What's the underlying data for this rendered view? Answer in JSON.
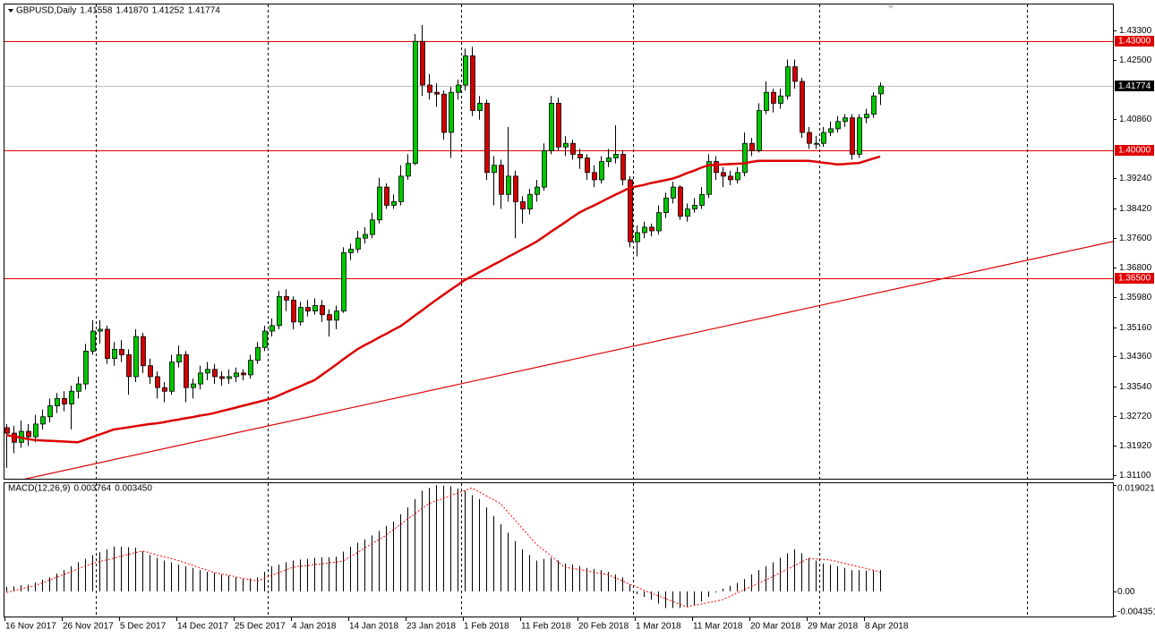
{
  "chart_data": {
    "type": "candlestick",
    "symbol": "GBPUSD,Daily",
    "last_bar_labels": {
      "open": "1.41558",
      "high": "1.41870",
      "low": "1.41252",
      "close": "1.41774"
    },
    "categories": [
      "16 Nov 2017",
      null,
      null,
      null,
      null,
      null,
      null,
      null,
      "26 Nov 2017",
      null,
      null,
      null,
      null,
      null,
      null,
      null,
      "5 Dec 2017",
      null,
      null,
      null,
      null,
      null,
      null,
      null,
      "14 Dec 2017",
      null,
      null,
      null,
      null,
      null,
      null,
      null,
      "25 Dec 2017",
      null,
      null,
      null,
      null,
      null,
      null,
      null,
      "4 Jan 2018",
      null,
      null,
      null,
      null,
      null,
      null,
      null,
      "14 Jan 2018",
      null,
      null,
      null,
      null,
      null,
      null,
      null,
      "23 Jan 2018",
      null,
      null,
      null,
      null,
      null,
      null,
      null,
      "1 Feb 2018",
      null,
      null,
      null,
      null,
      null,
      null,
      null,
      "11 Feb 2018",
      null,
      null,
      null,
      null,
      null,
      null,
      null,
      "20 Feb 2018",
      null,
      null,
      null,
      null,
      null,
      null,
      null,
      "1 Mar 2018",
      null,
      null,
      null,
      null,
      null,
      null,
      null,
      "11 Mar 2018",
      null,
      null,
      null,
      null,
      null,
      null,
      null,
      "20 Mar 2018",
      null,
      null,
      null,
      null,
      null,
      null,
      null,
      "29 Mar 2018",
      null,
      null,
      null,
      null,
      null,
      null,
      null,
      "8 Apr 2018",
      null,
      null
    ],
    "open": [
      1.324,
      1.3225,
      1.32,
      1.323,
      1.3215,
      1.325,
      1.327,
      1.33,
      1.332,
      1.3305,
      1.334,
      1.336,
      1.345,
      1.3505,
      1.351,
      1.343,
      1.3455,
      1.344,
      1.338,
      1.349,
      1.341,
      1.338,
      1.335,
      1.334,
      1.342,
      1.344,
      1.335,
      1.336,
      1.339,
      1.34,
      1.338,
      1.3375,
      1.338,
      1.339,
      1.3385,
      1.3425,
      1.346,
      1.3505,
      1.352,
      1.36,
      1.359,
      1.353,
      1.357,
      1.356,
      1.3575,
      1.355,
      1.3535,
      1.356,
      1.372,
      1.373,
      1.376,
      1.377,
      1.381,
      1.39,
      1.385,
      1.386,
      1.393,
      1.3965,
      1.43,
      1.418,
      1.416,
      1.4155,
      1.405,
      1.416,
      1.418,
      1.426,
      1.411,
      1.413,
      1.394,
      1.396,
      1.388,
      1.393,
      1.386,
      1.384,
      1.388,
      1.39,
      1.4,
      1.413,
      1.401,
      1.402,
      1.399,
      1.398,
      1.394,
      1.392,
      1.397,
      1.398,
      1.399,
      1.392,
      1.375,
      1.3775,
      1.379,
      1.378,
      1.383,
      1.387,
      1.39,
      1.382,
      1.384,
      1.385,
      1.388,
      1.397,
      1.394,
      1.393,
      1.392,
      1.394,
      1.402,
      1.4,
      1.411,
      1.416,
      1.413,
      1.415,
      1.423,
      1.419,
      1.405,
      1.402,
      1.402,
      1.405,
      1.406,
      1.408,
      1.409,
      1.399,
      1.409,
      1.41,
      1.41558
    ],
    "high": [
      1.325,
      1.3245,
      1.326,
      1.325,
      1.3275,
      1.329,
      1.332,
      1.3335,
      1.334,
      1.3355,
      1.338,
      1.347,
      1.3535,
      1.3535,
      1.352,
      1.3475,
      1.348,
      1.3455,
      1.351,
      1.35,
      1.343,
      1.3395,
      1.3365,
      1.344,
      1.3465,
      1.345,
      1.3375,
      1.341,
      1.342,
      1.3415,
      1.3395,
      1.34,
      1.3405,
      1.34,
      1.344,
      1.3475,
      1.352,
      1.354,
      1.3615,
      1.362,
      1.36,
      1.3585,
      1.359,
      1.3595,
      1.359,
      1.3565,
      1.3575,
      1.3735,
      1.3745,
      1.378,
      1.379,
      1.383,
      1.3925,
      1.391,
      1.388,
      1.396,
      1.399,
      1.432,
      1.4345,
      1.421,
      1.4185,
      1.4165,
      1.4175,
      1.4195,
      1.428,
      1.4285,
      1.415,
      1.414,
      1.3985,
      1.3975,
      1.4065,
      1.3945,
      1.3875,
      1.3895,
      1.392,
      1.402,
      1.415,
      1.4145,
      1.404,
      1.403,
      1.4005,
      1.399,
      1.396,
      1.3985,
      1.4005,
      1.407,
      1.4,
      1.393,
      1.3795,
      1.3805,
      1.38,
      1.385,
      1.3885,
      1.3915,
      1.3905,
      1.3855,
      1.387,
      1.39,
      1.399,
      1.3985,
      1.3955,
      1.3945,
      1.3955,
      1.405,
      1.4035,
      1.413,
      1.419,
      1.417,
      1.417,
      1.425,
      1.425,
      1.42,
      1.4065,
      1.404,
      1.4065,
      1.408,
      1.4095,
      1.41,
      1.41,
      1.41,
      1.4115,
      1.416,
      1.4187
    ],
    "low": [
      1.313,
      1.317,
      1.3185,
      1.319,
      1.32,
      1.3235,
      1.3255,
      1.328,
      1.3285,
      1.3235,
      1.332,
      1.3345,
      1.344,
      1.347,
      1.3415,
      1.341,
      1.342,
      1.333,
      1.3365,
      1.339,
      1.336,
      1.332,
      1.331,
      1.333,
      1.3405,
      1.331,
      1.332,
      1.3345,
      1.337,
      1.336,
      1.3355,
      1.336,
      1.3365,
      1.337,
      1.3375,
      1.3415,
      1.345,
      1.349,
      1.351,
      1.356,
      1.351,
      1.352,
      1.3545,
      1.355,
      1.353,
      1.349,
      1.351,
      1.3555,
      1.37,
      1.372,
      1.3745,
      1.376,
      1.38,
      1.384,
      1.384,
      1.385,
      1.392,
      1.396,
      1.415,
      1.414,
      1.412,
      1.403,
      1.398,
      1.414,
      1.4165,
      1.4095,
      1.4085,
      1.392,
      1.385,
      1.384,
      1.386,
      1.376,
      1.38,
      1.3825,
      1.386,
      1.389,
      1.399,
      1.4,
      1.3985,
      1.3975,
      1.395,
      1.392,
      1.39,
      1.391,
      1.3955,
      1.3965,
      1.3905,
      1.3735,
      1.371,
      1.376,
      1.3765,
      1.377,
      1.3815,
      1.3855,
      1.381,
      1.3805,
      1.383,
      1.384,
      1.387,
      1.392,
      1.39,
      1.3905,
      1.391,
      1.393,
      1.3985,
      1.3995,
      1.41,
      1.4105,
      1.4115,
      1.414,
      1.417,
      1.4035,
      1.4005,
      1.4005,
      1.401,
      1.404,
      1.405,
      1.4065,
      1.3975,
      1.398,
      1.4075,
      1.409,
      1.41252
    ],
    "close": [
      1.3225,
      1.32,
      1.323,
      1.3215,
      1.325,
      1.327,
      1.33,
      1.332,
      1.3305,
      1.334,
      1.336,
      1.345,
      1.3505,
      1.351,
      1.343,
      1.3455,
      1.344,
      1.338,
      1.349,
      1.341,
      1.338,
      1.335,
      1.334,
      1.342,
      1.344,
      1.335,
      1.336,
      1.339,
      1.34,
      1.338,
      1.3375,
      1.338,
      1.339,
      1.3385,
      1.3425,
      1.346,
      1.3505,
      1.352,
      1.36,
      1.359,
      1.353,
      1.357,
      1.356,
      1.3575,
      1.355,
      1.3535,
      1.356,
      1.372,
      1.373,
      1.376,
      1.377,
      1.381,
      1.39,
      1.385,
      1.386,
      1.393,
      1.3965,
      1.43,
      1.418,
      1.416,
      1.4155,
      1.405,
      1.416,
      1.418,
      1.426,
      1.411,
      1.413,
      1.394,
      1.396,
      1.388,
      1.393,
      1.386,
      1.384,
      1.388,
      1.39,
      1.4,
      1.413,
      1.401,
      1.402,
      1.399,
      1.398,
      1.394,
      1.392,
      1.397,
      1.398,
      1.399,
      1.392,
      1.375,
      1.3775,
      1.379,
      1.378,
      1.383,
      1.387,
      1.39,
      1.382,
      1.384,
      1.385,
      1.388,
      1.397,
      1.394,
      1.393,
      1.392,
      1.394,
      1.402,
      1.4,
      1.411,
      1.416,
      1.413,
      1.415,
      1.423,
      1.419,
      1.405,
      1.402,
      1.402,
      1.405,
      1.406,
      1.408,
      1.409,
      1.399,
      1.409,
      1.41,
      1.415,
      1.41774
    ],
    "up_color": "#00c800",
    "down_color": "#d40000",
    "xlim": [
      -0.25,
      154.5
    ],
    "ylim": [
      1.31,
      1.4401
    ],
    "yticks": [
      {
        "value": 1.433,
        "label": "1.43300"
      },
      {
        "value": 1.425,
        "label": "1.42500"
      },
      {
        "value": 1.4086,
        "label": "1.40860"
      },
      {
        "value": 1.3924,
        "label": "1.39240"
      },
      {
        "value": 1.3842,
        "label": "1.38420"
      },
      {
        "value": 1.376,
        "label": "1.37600"
      },
      {
        "value": 1.368,
        "label": "1.36800"
      },
      {
        "value": 1.3598,
        "label": "1.35980"
      },
      {
        "value": 1.3516,
        "label": "1.35160"
      },
      {
        "value": 1.3436,
        "label": "1.34360"
      },
      {
        "value": 1.3354,
        "label": "1.33540"
      },
      {
        "value": 1.3272,
        "label": "1.32720"
      },
      {
        "value": 1.3192,
        "label": "1.31920"
      },
      {
        "value": 1.311,
        "label": "1.31100"
      }
    ],
    "levels": [
      {
        "value": 1.43,
        "label": "1.43000"
      },
      {
        "value": 1.4,
        "label": "1.40000"
      },
      {
        "value": 1.365,
        "label": "1.36500"
      }
    ],
    "level_color": "#e00000",
    "month_starts": [
      13,
      37,
      64,
      88,
      114,
      143
    ],
    "moving_average": {
      "color": "#dd0000",
      "values": [
        1.322,
        1.3216,
        1.3213,
        1.3209,
        1.3206,
        1.3205,
        1.3204,
        1.3203,
        1.3202,
        1.3201,
        1.32,
        1.3207,
        1.3214,
        1.3221,
        1.3228,
        1.3235,
        1.3238,
        1.3241,
        1.3244,
        1.3247,
        1.325,
        1.3252,
        1.3255,
        1.3259,
        1.3262,
        1.3266,
        1.3269,
        1.3273,
        1.3276,
        1.328,
        1.3285,
        1.329,
        1.3295,
        1.33,
        1.3305,
        1.331,
        1.3315,
        1.332,
        1.3328,
        1.3337,
        1.3345,
        1.3353,
        1.3362,
        1.337,
        1.3384,
        1.3398,
        1.3412,
        1.3427,
        1.3441,
        1.3455,
        1.3466,
        1.3476,
        1.3487,
        1.3497,
        1.3508,
        1.3518,
        1.3532,
        1.3547,
        1.3561,
        1.3576,
        1.359,
        1.3604,
        1.3618,
        1.3631,
        1.3645,
        1.3655,
        1.3666,
        1.3676,
        1.3687,
        1.3697,
        1.3708,
        1.3718,
        1.3729,
        1.3739,
        1.375,
        1.3763,
        1.3777,
        1.379,
        1.3803,
        1.3817,
        1.383,
        1.384,
        1.3849,
        1.3859,
        1.3869,
        1.3879,
        1.3888,
        1.3898,
        1.3902,
        1.3906,
        1.3911,
        1.3915,
        1.3919,
        1.3923,
        1.393,
        1.3938,
        1.3945,
        1.3953,
        1.396,
        1.3961,
        1.3962,
        1.3963,
        1.3964,
        1.3965,
        1.3969,
        1.3972,
        1.3972,
        1.3972,
        1.3972,
        1.3972,
        1.3972,
        1.3972,
        1.3972,
        1.397,
        1.3967,
        1.3965,
        1.3962,
        1.3963,
        1.3965,
        1.3966,
        1.3972,
        1.3978,
        1.3984
      ]
    },
    "trendline": {
      "color": "#dd0000",
      "x": [
        0,
        155
      ],
      "y": [
        1.3088,
        1.3753
      ]
    },
    "macd": {
      "title": "MACD(12,26,9)",
      "signal_label": "0.003450",
      "bar_color": "#000000",
      "signal_color": "#ff0000",
      "ylim": [
        -0.004351,
        0.019021
      ],
      "yticks": [
        0.019021,
        {
          "value": 0,
          "label": "0.00"
        },
        -0.004351
      ],
      "histogram": [
        0.0008,
        0.0009,
        0.0011,
        0.0012,
        0.0016,
        0.0021,
        0.0025,
        0.0032,
        0.0038,
        0.0045,
        0.0052,
        0.0058,
        0.0065,
        0.007,
        0.0075,
        0.008,
        0.008,
        0.0079,
        0.0078,
        0.0072,
        0.0065,
        0.006,
        0.0055,
        0.0052,
        0.0048,
        0.0045,
        0.0042,
        0.0038,
        0.0035,
        0.0033,
        0.003,
        0.0028,
        0.0025,
        0.0022,
        0.0023,
        0.0025,
        0.0035,
        0.0045,
        0.0048,
        0.0052,
        0.0055,
        0.0057,
        0.0058,
        0.006,
        0.0061,
        0.0061,
        0.0062,
        0.0071,
        0.008,
        0.0087,
        0.0093,
        0.01,
        0.0108,
        0.0117,
        0.0125,
        0.0138,
        0.015,
        0.0165,
        0.018,
        0.0185,
        0.019,
        0.0189,
        0.0188,
        0.0184,
        0.018,
        0.0172,
        0.0165,
        0.015,
        0.0135,
        0.012,
        0.0105,
        0.009,
        0.0075,
        0.0065,
        0.0055,
        0.0058,
        0.006,
        0.0055,
        0.005,
        0.0048,
        0.0045,
        0.0042,
        0.004,
        0.0038,
        0.0035,
        0.003,
        0.0025,
        0.0012,
        -0.0005,
        -0.001,
        -0.0015,
        -0.0022,
        -0.003,
        -0.003,
        -0.003,
        -0.0028,
        -0.0025,
        -0.0018,
        -0.001,
        -0.0002,
        0.0005,
        0.001,
        0.0015,
        0.0022,
        0.003,
        0.0038,
        0.0045,
        0.0052,
        0.006,
        0.0068,
        0.0075,
        0.0068,
        0.006,
        0.0055,
        0.005,
        0.0048,
        0.0045,
        0.0042,
        0.0038,
        0.0038,
        0.0037,
        0.0037,
        0.003764
      ],
      "signal": [
        -0.0002,
        0.0001,
        0.0004,
        0.0007,
        0.001,
        0.0015,
        0.002,
        0.0025,
        0.003,
        0.0035,
        0.004,
        0.0045,
        0.005,
        0.0053,
        0.0056,
        0.0059,
        0.0063,
        0.0066,
        0.0069,
        0.0072,
        0.0069,
        0.0065,
        0.0062,
        0.0059,
        0.0055,
        0.0051,
        0.0047,
        0.0042,
        0.0038,
        0.0034,
        0.0031,
        0.0029,
        0.0026,
        0.0023,
        0.0021,
        0.0018,
        0.0023,
        0.0028,
        0.0033,
        0.0038,
        0.0043,
        0.0045,
        0.0046,
        0.0048,
        0.0049,
        0.0051,
        0.0052,
        0.0054,
        0.0062,
        0.0069,
        0.0077,
        0.0085,
        0.0092,
        0.01,
        0.011,
        0.0119,
        0.0129,
        0.0138,
        0.0148,
        0.0157,
        0.0162,
        0.0166,
        0.0171,
        0.0176,
        0.018,
        0.0185,
        0.0178,
        0.0171,
        0.0164,
        0.0157,
        0.0142,
        0.0128,
        0.0113,
        0.0099,
        0.0084,
        0.0074,
        0.0064,
        0.0053,
        0.0043,
        0.0041,
        0.0039,
        0.0037,
        0.0034,
        0.0032,
        0.003,
        0.0024,
        0.0019,
        0.0013,
        0.0008,
        0.0002,
        -0.0003,
        -0.0008,
        -0.0013,
        -0.0018,
        -0.0023,
        -0.0028,
        -0.0025,
        -0.0023,
        -0.002,
        -0.0018,
        -0.0015,
        -0.0009,
        -0.0003,
        0.0003,
        0.0008,
        0.0014,
        0.002,
        0.0026,
        0.0033,
        0.0039,
        0.0046,
        0.0052,
        0.0059,
        0.0058,
        0.0057,
        0.0056,
        0.0053,
        0.005,
        0.0047,
        0.0044,
        0.0041,
        0.0038,
        0.00345
      ]
    }
  }
}
